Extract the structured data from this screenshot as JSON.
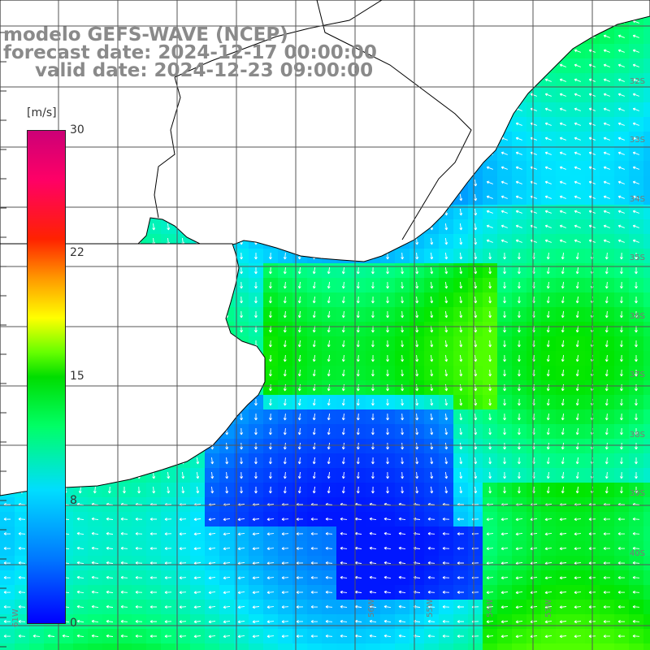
{
  "title": {
    "model": "modelo GEFS-WAVE (NCEP)",
    "forecast": "forecast date: 2024-12-17 00:00:00",
    "valid": "valid date: 2024-12-23 09:00:00"
  },
  "colorbar": {
    "unit": "[m/s]",
    "ticks": [
      "30",
      "22",
      "15",
      "8",
      "0"
    ],
    "colors": [
      "#0000ff",
      "#0077ff",
      "#00ddff",
      "#00ff66",
      "#00dd00",
      "#66ff00",
      "#ffff00",
      "#ff9900",
      "#ff2200",
      "#ff0066",
      "#cc0077"
    ]
  },
  "lat_labels": [
    "32S",
    "33S",
    "34S",
    "35S",
    "36S",
    "37S",
    "38S",
    "39S",
    "40S"
  ],
  "lon_labels": [
    "61W",
    "56W",
    "55W",
    "54W",
    "53W"
  ],
  "colors": {
    "land": "#ffffff",
    "coast": "#000000",
    "grid": "#555555",
    "arrow": "#ffffff"
  }
}
